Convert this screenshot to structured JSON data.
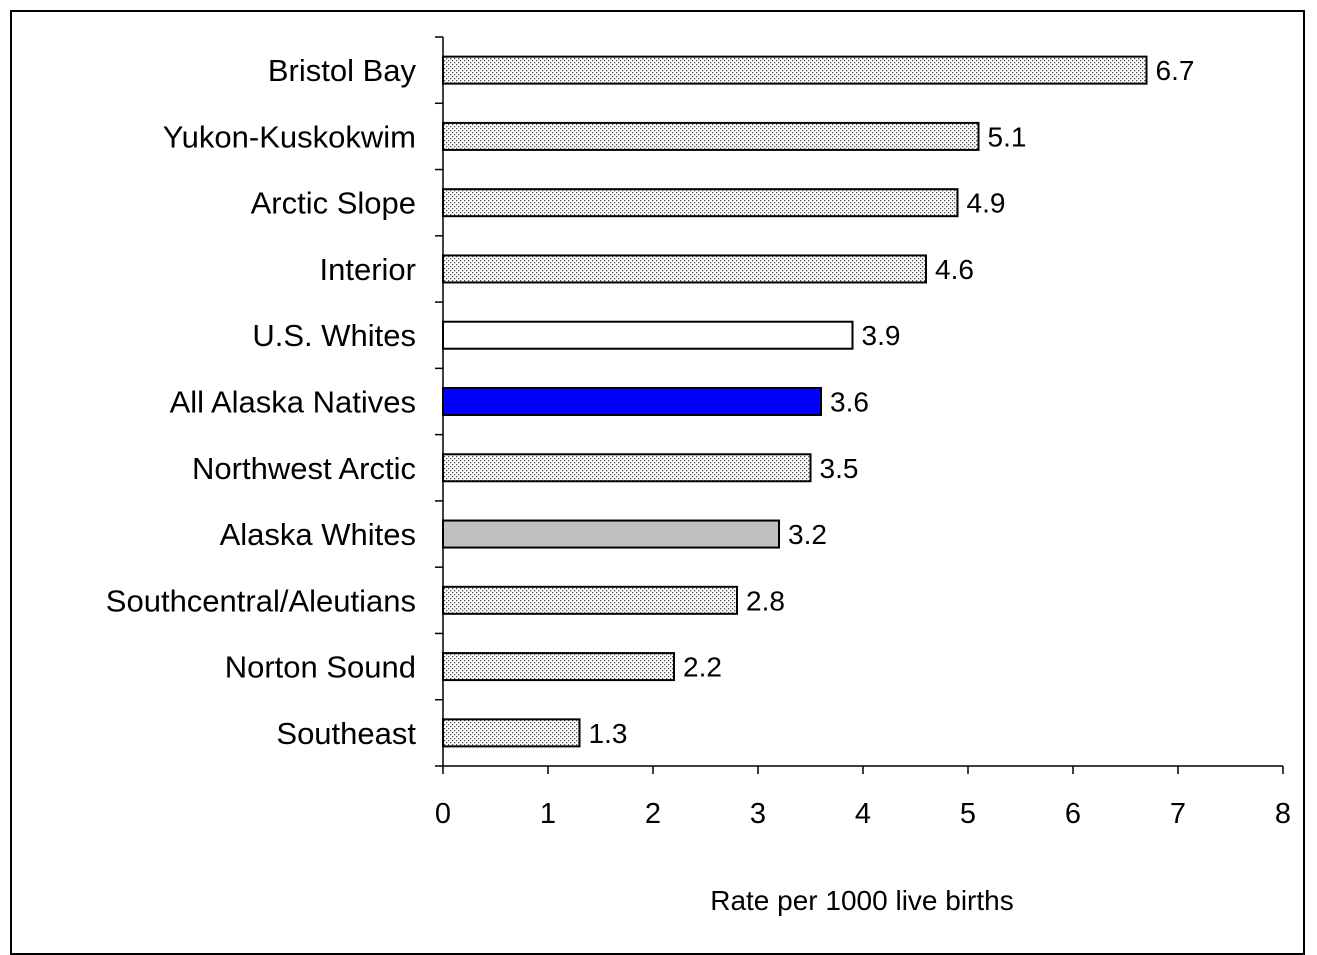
{
  "chart_data": {
    "type": "bar",
    "orientation": "horizontal",
    "title": "",
    "xlabel": "Rate per 1000 live births",
    "ylabel": "",
    "xlim": [
      0,
      8
    ],
    "xticks": [
      "0",
      "1",
      "2",
      "3",
      "4",
      "5",
      "6",
      "7",
      "8"
    ],
    "grid": false,
    "categories": [
      "Bristol Bay",
      "Yukon-Kuskokwim",
      "Arctic Slope",
      "Interior",
      "U.S. Whites",
      "All Alaska Natives",
      "Northwest Arctic",
      "Alaska Whites",
      "Southcentral/Aleutians",
      "Norton Sound",
      "Southeast"
    ],
    "values": [
      6.7,
      5.1,
      4.9,
      4.6,
      3.9,
      3.6,
      3.5,
      3.2,
      2.8,
      2.2,
      1.3
    ],
    "value_labels": [
      "6.7",
      "5.1",
      "4.9",
      "4.6",
      "3.9",
      "3.6",
      "3.5",
      "3.2",
      "2.8",
      "2.2",
      "1.3"
    ],
    "bar_fills": [
      "dots",
      "dots",
      "dots",
      "dots",
      "white",
      "blue",
      "dots",
      "gray",
      "dots",
      "dots",
      "dots"
    ],
    "colors": {
      "blue": "#0000ff",
      "gray": "#c0c0c0",
      "white": "#ffffff",
      "dots": "#000000",
      "outline": "#000000"
    }
  }
}
